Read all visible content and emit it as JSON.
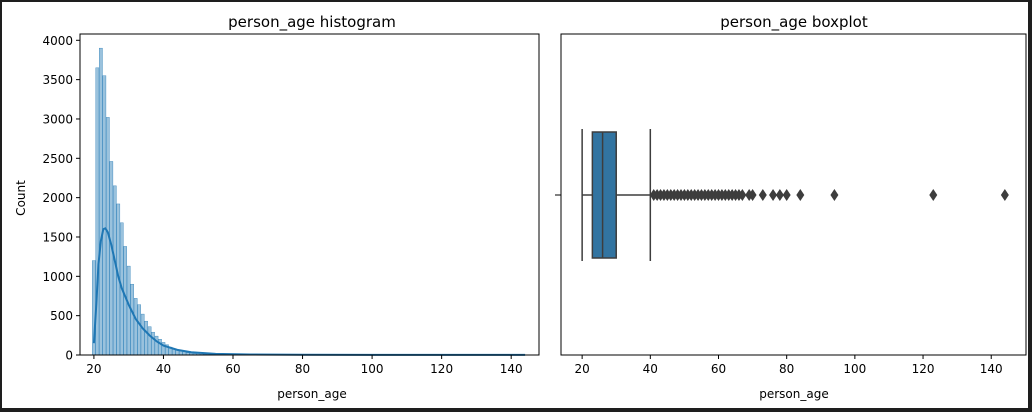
{
  "chart_data": [
    {
      "type": "histogram",
      "title": "person_age histogram",
      "xlabel": "person_age",
      "ylabel": "Count",
      "xlim": [
        16.0,
        148.0
      ],
      "ylim": [
        0,
        4080
      ],
      "xticks": [
        20,
        40,
        60,
        80,
        100,
        120,
        140
      ],
      "yticks": [
        0,
        500,
        1000,
        1500,
        2000,
        2500,
        3000,
        3500,
        4000
      ],
      "bar_color": "#1f77b4",
      "bins": [
        {
          "x": 20,
          "count": 1200
        },
        {
          "x": 21,
          "count": 3650
        },
        {
          "x": 22,
          "count": 3900
        },
        {
          "x": 23,
          "count": 3550
        },
        {
          "x": 24,
          "count": 3020
        },
        {
          "x": 25,
          "count": 2460
        },
        {
          "x": 26,
          "count": 2150
        },
        {
          "x": 27,
          "count": 1920
        },
        {
          "x": 28,
          "count": 1680
        },
        {
          "x": 29,
          "count": 1380
        },
        {
          "x": 30,
          "count": 1130
        },
        {
          "x": 31,
          "count": 900
        },
        {
          "x": 32,
          "count": 720
        },
        {
          "x": 33,
          "count": 640
        },
        {
          "x": 34,
          "count": 520
        },
        {
          "x": 35,
          "count": 430
        },
        {
          "x": 36,
          "count": 360
        },
        {
          "x": 37,
          "count": 290
        },
        {
          "x": 38,
          "count": 240
        },
        {
          "x": 39,
          "count": 200
        },
        {
          "x": 40,
          "count": 160
        },
        {
          "x": 41,
          "count": 130
        },
        {
          "x": 42,
          "count": 100
        },
        {
          "x": 43,
          "count": 80
        },
        {
          "x": 44,
          "count": 65
        },
        {
          "x": 45,
          "count": 50
        },
        {
          "x": 46,
          "count": 40
        },
        {
          "x": 47,
          "count": 30
        },
        {
          "x": 48,
          "count": 24
        },
        {
          "x": 49,
          "count": 18
        },
        {
          "x": 50,
          "count": 14
        },
        {
          "x": 51,
          "count": 12
        },
        {
          "x": 52,
          "count": 10
        },
        {
          "x": 53,
          "count": 8
        },
        {
          "x": 54,
          "count": 6
        },
        {
          "x": 55,
          "count": 5
        },
        {
          "x": 56,
          "count": 4
        },
        {
          "x": 57,
          "count": 3
        },
        {
          "x": 58,
          "count": 3
        },
        {
          "x": 60,
          "count": 2
        },
        {
          "x": 62,
          "count": 2
        },
        {
          "x": 64,
          "count": 1
        },
        {
          "x": 66,
          "count": 1
        },
        {
          "x": 70,
          "count": 1
        },
        {
          "x": 73,
          "count": 1
        },
        {
          "x": 76,
          "count": 1
        },
        {
          "x": 78,
          "count": 1
        },
        {
          "x": 80,
          "count": 1
        },
        {
          "x": 84,
          "count": 1
        },
        {
          "x": 94,
          "count": 1
        },
        {
          "x": 123,
          "count": 1
        },
        {
          "x": 144,
          "count": 1
        }
      ],
      "kde": [
        {
          "x": 20,
          "y": 150
        },
        {
          "x": 20.7,
          "y": 650
        },
        {
          "x": 21.3,
          "y": 1150
        },
        {
          "x": 22,
          "y": 1450
        },
        {
          "x": 22.7,
          "y": 1600
        },
        {
          "x": 23.3,
          "y": 1610
        },
        {
          "x": 24,
          "y": 1560
        },
        {
          "x": 25,
          "y": 1400
        },
        {
          "x": 26,
          "y": 1200
        },
        {
          "x": 27,
          "y": 1000
        },
        {
          "x": 28,
          "y": 850
        },
        {
          "x": 30,
          "y": 640
        },
        {
          "x": 32,
          "y": 460
        },
        {
          "x": 34,
          "y": 340
        },
        {
          "x": 36,
          "y": 250
        },
        {
          "x": 38,
          "y": 175
        },
        {
          "x": 40,
          "y": 120
        },
        {
          "x": 44,
          "y": 65
        },
        {
          "x": 48,
          "y": 35
        },
        {
          "x": 55,
          "y": 15
        },
        {
          "x": 65,
          "y": 6
        },
        {
          "x": 80,
          "y": 3
        },
        {
          "x": 100,
          "y": 2
        },
        {
          "x": 120,
          "y": 1
        },
        {
          "x": 144,
          "y": 1
        }
      ]
    },
    {
      "type": "boxplot",
      "title": "person_age boxplot",
      "xlabel": "person_age",
      "xlim": [
        13.8,
        150.2
      ],
      "xticks": [
        20,
        40,
        60,
        80,
        100,
        120,
        140
      ],
      "box_color": "#3274a1",
      "whisker_low": 20,
      "q1": 23,
      "median": 26,
      "q3": 30,
      "whisker_high": 40,
      "outliers": [
        41,
        42,
        43,
        44,
        45,
        46,
        47,
        48,
        49,
        50,
        51,
        52,
        53,
        54,
        55,
        56,
        57,
        58,
        59,
        60,
        61,
        62,
        63,
        64,
        65,
        66,
        67,
        69,
        70,
        73,
        76,
        78,
        80,
        84,
        94,
        123,
        144
      ]
    }
  ]
}
